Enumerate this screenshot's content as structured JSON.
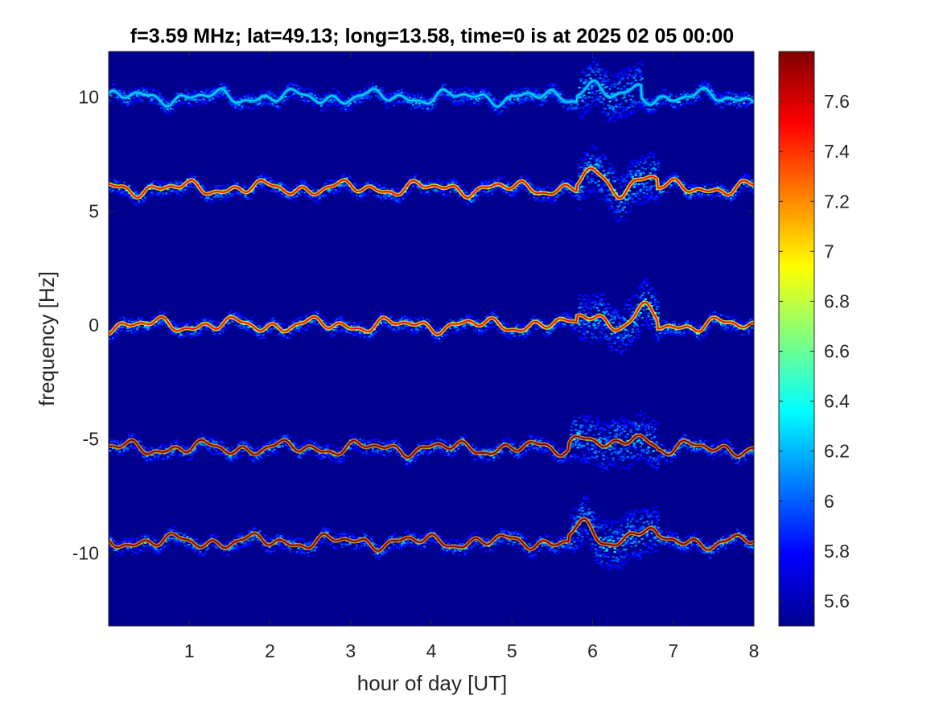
{
  "chart_data": {
    "type": "heatmap",
    "title": "f=3.59 MHz;  lat=49.13; long=13.58, time=0 is at 2025 02 05 00:00",
    "xlabel": "hour of day [UT]",
    "ylabel": "frequency [Hz]",
    "xlim": [
      0,
      8
    ],
    "ylim": [
      -13.2,
      12
    ],
    "x_ticks": [
      1,
      2,
      3,
      4,
      5,
      6,
      7,
      8
    ],
    "x_tick_labels": [
      "1",
      "2",
      "3",
      "4",
      "5",
      "6",
      "7",
      "8"
    ],
    "y_ticks": [
      10,
      5,
      0,
      -5,
      -10
    ],
    "y_tick_labels": [
      "10",
      "5",
      "0",
      "-5",
      "-10"
    ],
    "colorbar": {
      "colormap": "jet",
      "range": [
        5.5,
        7.8
      ],
      "ticks": [
        7.6,
        7.4,
        7.2,
        7,
        6.8,
        6.6,
        6.4,
        6.2,
        6,
        5.8,
        5.6
      ],
      "tick_labels": [
        "7.6",
        "7.4",
        "7.2",
        "7",
        "6.8",
        "6.6",
        "6.4",
        "6.2",
        "6",
        "5.8",
        "5.6"
      ]
    },
    "traces": [
      {
        "center_hz": 10,
        "peak_value": 6.3,
        "disturbed_hours": [
          5.8,
          6.6
        ]
      },
      {
        "center_hz": 6,
        "peak_value": 7.5,
        "disturbed_hours": [
          5.8,
          6.8
        ]
      },
      {
        "center_hz": 0,
        "peak_value": 7.5,
        "disturbed_hours": [
          5.8,
          6.8
        ]
      },
      {
        "center_hz": -5.4,
        "peak_value": 7.8,
        "disturbed_hours": [
          5.7,
          6.8
        ]
      },
      {
        "center_hz": -9.5,
        "peak_value": 7.8,
        "disturbed_hours": [
          5.7,
          6.8
        ]
      }
    ],
    "background_value": 5.5
  }
}
